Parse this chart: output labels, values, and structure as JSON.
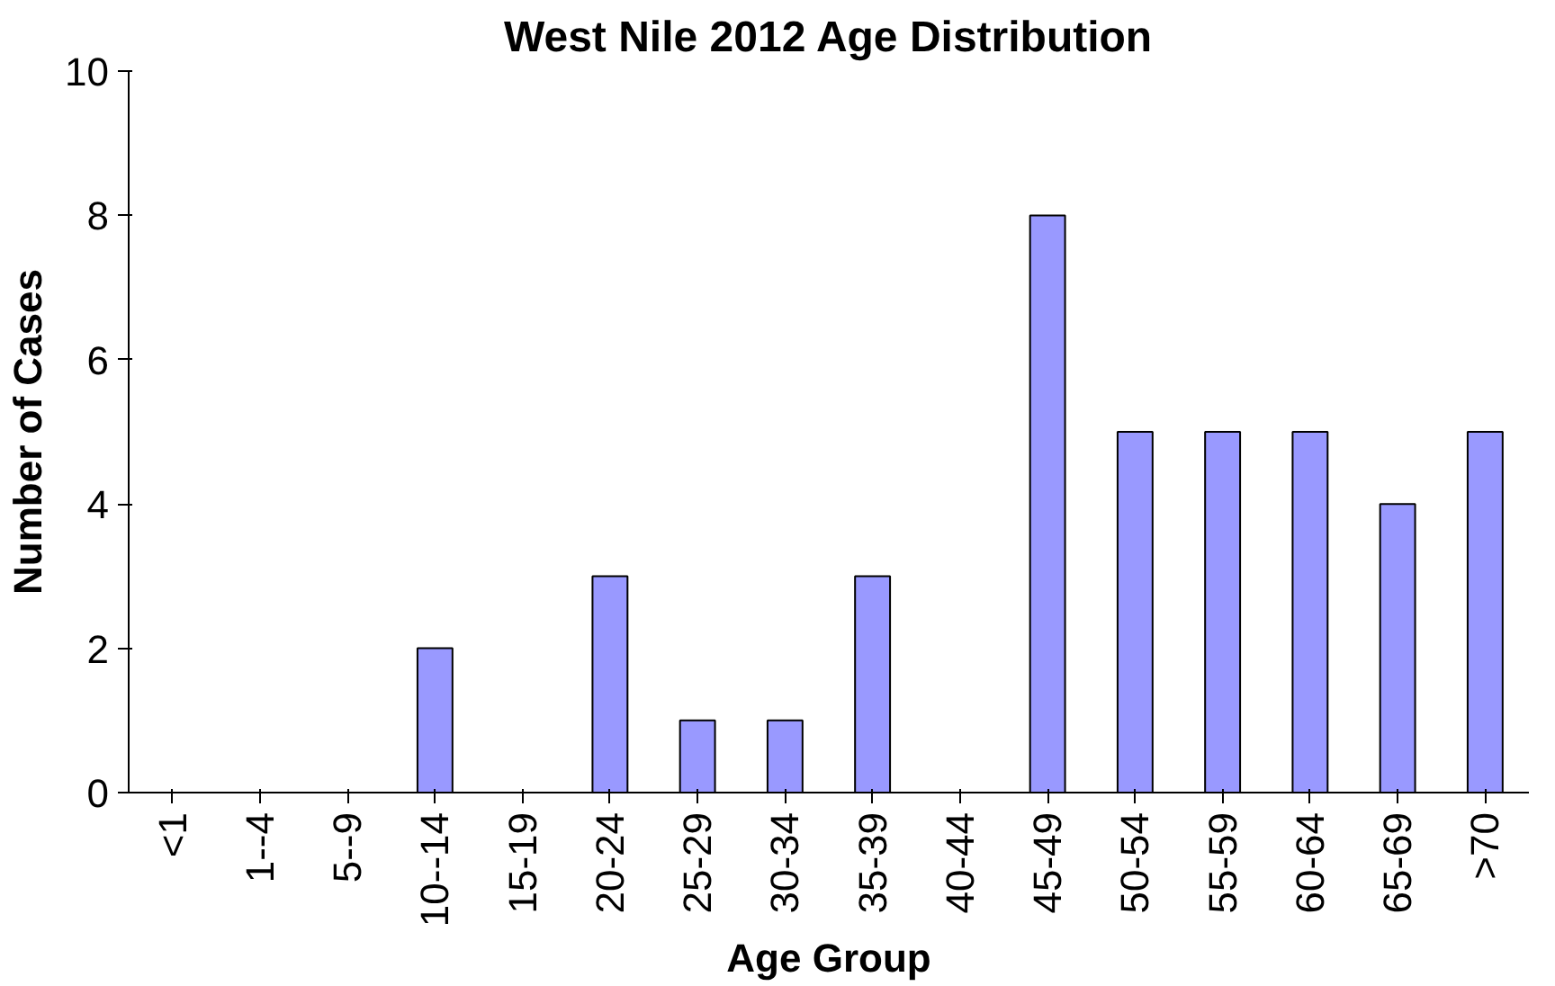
{
  "chart_data": {
    "type": "bar",
    "title": "West Nile 2012 Age Distribution",
    "xlabel": "Age Group",
    "ylabel": "Number of Cases",
    "categories": [
      "<1",
      "1--4",
      "5--9",
      "10--14",
      "15-19",
      "20-24",
      "25-29",
      "30-34",
      "35-39",
      "40-44",
      "45-49",
      "50-54",
      "55-59",
      "60-64",
      "65-69",
      ">70"
    ],
    "values": [
      0,
      0,
      0,
      2,
      0,
      3,
      1,
      1,
      3,
      0,
      8,
      5,
      5,
      5,
      4,
      5
    ],
    "color": "#9999ff",
    "ylim": [
      0,
      10
    ],
    "yticks": [
      0,
      2,
      4,
      6,
      8,
      10
    ],
    "grid": false
  }
}
